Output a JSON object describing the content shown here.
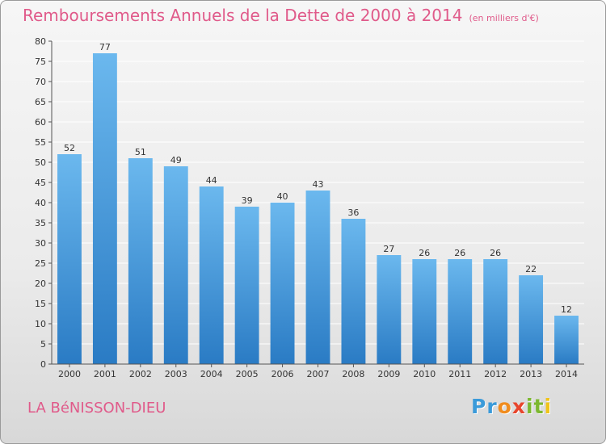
{
  "chart_data": {
    "type": "bar",
    "title": "Remboursements Annuels de la Dette de 2000 à 2014",
    "subtitle": "(en milliers d'€)",
    "categories": [
      "2000",
      "2001",
      "2002",
      "2003",
      "2004",
      "2005",
      "2006",
      "2007",
      "2008",
      "2009",
      "2010",
      "2011",
      "2012",
      "2013",
      "2014"
    ],
    "values": [
      52,
      77,
      51,
      49,
      44,
      39,
      40,
      43,
      36,
      27,
      26,
      26,
      26,
      22,
      12
    ],
    "ylim": [
      0,
      80
    ],
    "yticks": [
      0,
      5,
      10,
      15,
      20,
      25,
      30,
      35,
      40,
      45,
      50,
      55,
      60,
      65,
      70,
      75,
      80
    ],
    "grid": true,
    "bar_color_top": "#6bb8ee",
    "bar_color_bottom": "#2a7bc4"
  },
  "footer": {
    "commune": "LA BéNISSON-DIEU",
    "logo_letters": [
      "P",
      "r",
      "o",
      "x",
      "i",
      "t",
      "i"
    ],
    "logo_colors": [
      "#3a9ad9",
      "#3a9ad9",
      "#f08c1e",
      "#e8452c",
      "#7cb82f",
      "#7cb82f",
      "#f0c419"
    ]
  },
  "colors": {
    "title": "#e05a8a",
    "grid": "#ffffff",
    "axis": "#555555"
  }
}
